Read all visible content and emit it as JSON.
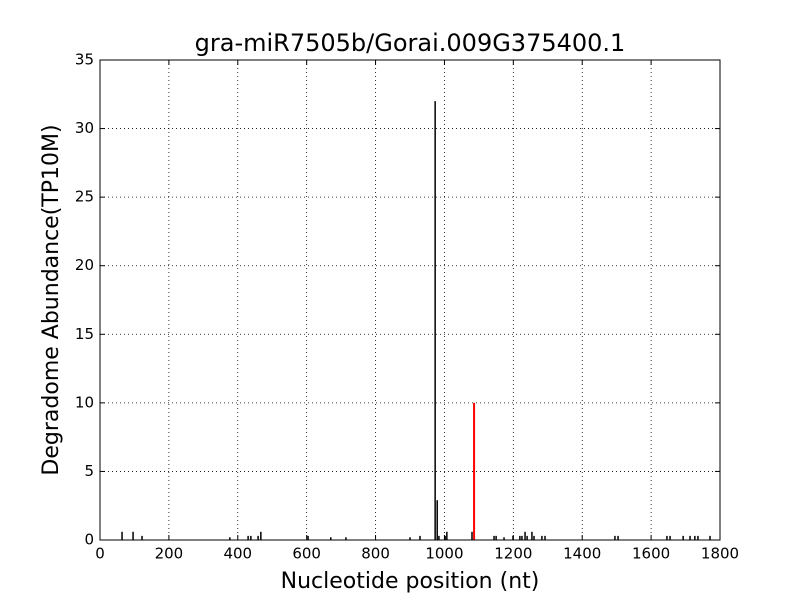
{
  "chart_data": {
    "type": "stem",
    "title": "gra-miR7505b/Gorai.009G375400.1",
    "x_label": "Nucleotide position (nt)",
    "y_label": "Degradome Abundance(TP10M)",
    "xlim": [
      0,
      1800
    ],
    "xticks": [
      0,
      200,
      400,
      600,
      800,
      1000,
      1200,
      1400,
      1600,
      1800
    ],
    "ylim": [
      0,
      35
    ],
    "yticks": [
      0,
      5,
      10,
      15,
      20,
      25,
      30,
      35
    ],
    "grid": true,
    "series": [
      {
        "color": "#000000",
        "x": [
          64,
          96,
          122,
          377,
          430,
          438,
          459,
          467,
          604,
          670,
          714,
          900,
          929,
          973,
          979,
          984,
          1002,
          1007,
          1080,
          1144,
          1150,
          1173,
          1199,
          1219,
          1225,
          1234,
          1240,
          1254,
          1260,
          1283,
          1292,
          1495,
          1504,
          1646,
          1655,
          1693,
          1713,
          1727,
          1736,
          1771
        ],
        "values": [
          0.6,
          0.6,
          0.3,
          0.2,
          0.3,
          0.3,
          0.3,
          0.6,
          0.3,
          0.2,
          0.2,
          0.2,
          0.3,
          32,
          2.9,
          0.3,
          0.3,
          0.6,
          0.6,
          0.3,
          0.3,
          0.2,
          0.3,
          0.3,
          0.3,
          0.6,
          0.3,
          0.6,
          0.3,
          0.3,
          0.3,
          0.3,
          0.3,
          0.3,
          0.3,
          0.3,
          0.3,
          0.3,
          0.3,
          0.3
        ]
      },
      {
        "color": "#ff0000",
        "x": [
          1086
        ],
        "values": [
          10
        ]
      }
    ]
  }
}
